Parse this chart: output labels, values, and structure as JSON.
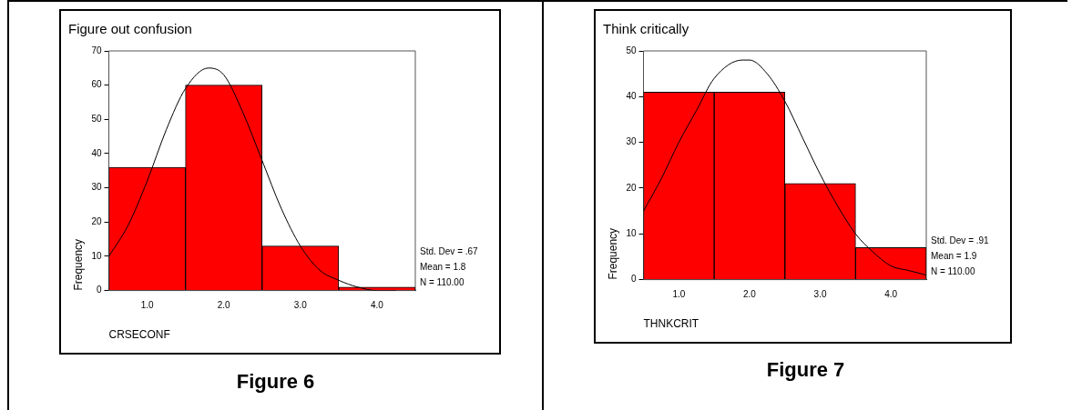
{
  "chart_data": [
    {
      "type": "histogram",
      "title": "Figure out confusion",
      "xlabel": "CRSECONF",
      "ylabel": "Frequency",
      "bins": [
        0.5,
        1.5,
        2.5,
        3.5,
        4.5
      ],
      "values": [
        36,
        60,
        13,
        1
      ],
      "color": "#ff0000",
      "series": [
        {
          "type": "line",
          "color": "#000000",
          "x": [
            0.5,
            0.75,
            1.0,
            1.25,
            1.5,
            1.8,
            2.0,
            2.25,
            2.5,
            2.75,
            3.0,
            3.25,
            3.5,
            3.75,
            4.0,
            4.25
          ],
          "values": [
            10,
            19,
            32,
            47,
            59,
            65,
            63,
            52,
            38,
            24,
            13,
            6,
            3,
            1,
            0,
            0
          ]
        }
      ],
      "xlim": [
        0.5,
        4.5
      ],
      "xticks": [
        {
          "value": 1,
          "label": "1.0"
        },
        {
          "value": 2,
          "label": "2.0"
        },
        {
          "value": 3,
          "label": "3.0"
        },
        {
          "value": 4,
          "label": "4.0"
        }
      ],
      "ylim": [
        0,
        70
      ],
      "yticks": [
        0,
        10,
        20,
        30,
        40,
        50,
        60,
        70
      ],
      "grid": false,
      "legend": false,
      "marker": "none",
      "annotations": [
        "Std. Dev = .67",
        "Mean = 1.8",
        "N = 110.00",
        "Figure 6"
      ]
    },
    {
      "type": "histogram",
      "title": "Think critically",
      "xlabel": "THNKCRIT",
      "ylabel": "Frequency",
      "bins": [
        0.5,
        1.5,
        2.5,
        3.5,
        4.5
      ],
      "values": [
        41,
        41,
        21,
        7
      ],
      "color": "#ff0000",
      "series": [
        {
          "type": "line",
          "color": "#000000",
          "x": [
            0.5,
            0.75,
            1.0,
            1.25,
            1.5,
            1.9,
            2.0,
            2.25,
            2.5,
            2.75,
            3.0,
            3.25,
            3.5,
            3.75,
            4.0,
            4.25,
            4.5
          ],
          "values": [
            15,
            22,
            30,
            37,
            44,
            48,
            48,
            45,
            39,
            31,
            23,
            16,
            10,
            6,
            3,
            2,
            1
          ]
        }
      ],
      "xlim": [
        0.5,
        4.5
      ],
      "xticks": [
        {
          "value": 1,
          "label": "1.0"
        },
        {
          "value": 2,
          "label": "2.0"
        },
        {
          "value": 3,
          "label": "3.0"
        },
        {
          "value": 4,
          "label": "4.0"
        }
      ],
      "ylim": [
        0,
        50
      ],
      "yticks": [
        0,
        10,
        20,
        30,
        40,
        50
      ],
      "grid": false,
      "legend": false,
      "marker": "none",
      "annotations": [
        "Std. Dev = .91",
        "Mean = 1.9",
        "N = 110.00",
        "Figure 7"
      ]
    }
  ]
}
